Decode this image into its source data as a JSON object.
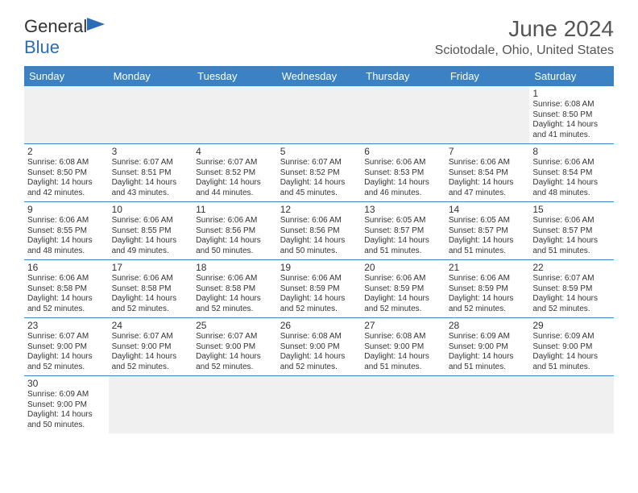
{
  "logo": {
    "text1": "General",
    "text2": "Blue"
  },
  "title": "June 2024",
  "location": "Sciotodale, Ohio, United States",
  "colors": {
    "header_bg": "#3b82c4",
    "header_fg": "#ffffff",
    "border": "#3b82c4",
    "empty_bg": "#f0f0f0",
    "text": "#333333",
    "logo_blue": "#2a6db5"
  },
  "day_headers": [
    "Sunday",
    "Monday",
    "Tuesday",
    "Wednesday",
    "Thursday",
    "Friday",
    "Saturday"
  ],
  "weeks": [
    [
      null,
      null,
      null,
      null,
      null,
      null,
      {
        "n": "1",
        "sr": "6:08 AM",
        "ss": "8:50 PM",
        "dl": "14 hours and 41 minutes."
      }
    ],
    [
      {
        "n": "2",
        "sr": "6:08 AM",
        "ss": "8:50 PM",
        "dl": "14 hours and 42 minutes."
      },
      {
        "n": "3",
        "sr": "6:07 AM",
        "ss": "8:51 PM",
        "dl": "14 hours and 43 minutes."
      },
      {
        "n": "4",
        "sr": "6:07 AM",
        "ss": "8:52 PM",
        "dl": "14 hours and 44 minutes."
      },
      {
        "n": "5",
        "sr": "6:07 AM",
        "ss": "8:52 PM",
        "dl": "14 hours and 45 minutes."
      },
      {
        "n": "6",
        "sr": "6:06 AM",
        "ss": "8:53 PM",
        "dl": "14 hours and 46 minutes."
      },
      {
        "n": "7",
        "sr": "6:06 AM",
        "ss": "8:54 PM",
        "dl": "14 hours and 47 minutes."
      },
      {
        "n": "8",
        "sr": "6:06 AM",
        "ss": "8:54 PM",
        "dl": "14 hours and 48 minutes."
      }
    ],
    [
      {
        "n": "9",
        "sr": "6:06 AM",
        "ss": "8:55 PM",
        "dl": "14 hours and 48 minutes."
      },
      {
        "n": "10",
        "sr": "6:06 AM",
        "ss": "8:55 PM",
        "dl": "14 hours and 49 minutes."
      },
      {
        "n": "11",
        "sr": "6:06 AM",
        "ss": "8:56 PM",
        "dl": "14 hours and 50 minutes."
      },
      {
        "n": "12",
        "sr": "6:06 AM",
        "ss": "8:56 PM",
        "dl": "14 hours and 50 minutes."
      },
      {
        "n": "13",
        "sr": "6:05 AM",
        "ss": "8:57 PM",
        "dl": "14 hours and 51 minutes."
      },
      {
        "n": "14",
        "sr": "6:05 AM",
        "ss": "8:57 PM",
        "dl": "14 hours and 51 minutes."
      },
      {
        "n": "15",
        "sr": "6:06 AM",
        "ss": "8:57 PM",
        "dl": "14 hours and 51 minutes."
      }
    ],
    [
      {
        "n": "16",
        "sr": "6:06 AM",
        "ss": "8:58 PM",
        "dl": "14 hours and 52 minutes."
      },
      {
        "n": "17",
        "sr": "6:06 AM",
        "ss": "8:58 PM",
        "dl": "14 hours and 52 minutes."
      },
      {
        "n": "18",
        "sr": "6:06 AM",
        "ss": "8:58 PM",
        "dl": "14 hours and 52 minutes."
      },
      {
        "n": "19",
        "sr": "6:06 AM",
        "ss": "8:59 PM",
        "dl": "14 hours and 52 minutes."
      },
      {
        "n": "20",
        "sr": "6:06 AM",
        "ss": "8:59 PM",
        "dl": "14 hours and 52 minutes."
      },
      {
        "n": "21",
        "sr": "6:06 AM",
        "ss": "8:59 PM",
        "dl": "14 hours and 52 minutes."
      },
      {
        "n": "22",
        "sr": "6:07 AM",
        "ss": "8:59 PM",
        "dl": "14 hours and 52 minutes."
      }
    ],
    [
      {
        "n": "23",
        "sr": "6:07 AM",
        "ss": "9:00 PM",
        "dl": "14 hours and 52 minutes."
      },
      {
        "n": "24",
        "sr": "6:07 AM",
        "ss": "9:00 PM",
        "dl": "14 hours and 52 minutes."
      },
      {
        "n": "25",
        "sr": "6:07 AM",
        "ss": "9:00 PM",
        "dl": "14 hours and 52 minutes."
      },
      {
        "n": "26",
        "sr": "6:08 AM",
        "ss": "9:00 PM",
        "dl": "14 hours and 52 minutes."
      },
      {
        "n": "27",
        "sr": "6:08 AM",
        "ss": "9:00 PM",
        "dl": "14 hours and 51 minutes."
      },
      {
        "n": "28",
        "sr": "6:09 AM",
        "ss": "9:00 PM",
        "dl": "14 hours and 51 minutes."
      },
      {
        "n": "29",
        "sr": "6:09 AM",
        "ss": "9:00 PM",
        "dl": "14 hours and 51 minutes."
      }
    ],
    [
      {
        "n": "30",
        "sr": "6:09 AM",
        "ss": "9:00 PM",
        "dl": "14 hours and 50 minutes."
      },
      null,
      null,
      null,
      null,
      null,
      null
    ]
  ],
  "labels": {
    "sunrise": "Sunrise:",
    "sunset": "Sunset:",
    "daylight": "Daylight:"
  }
}
